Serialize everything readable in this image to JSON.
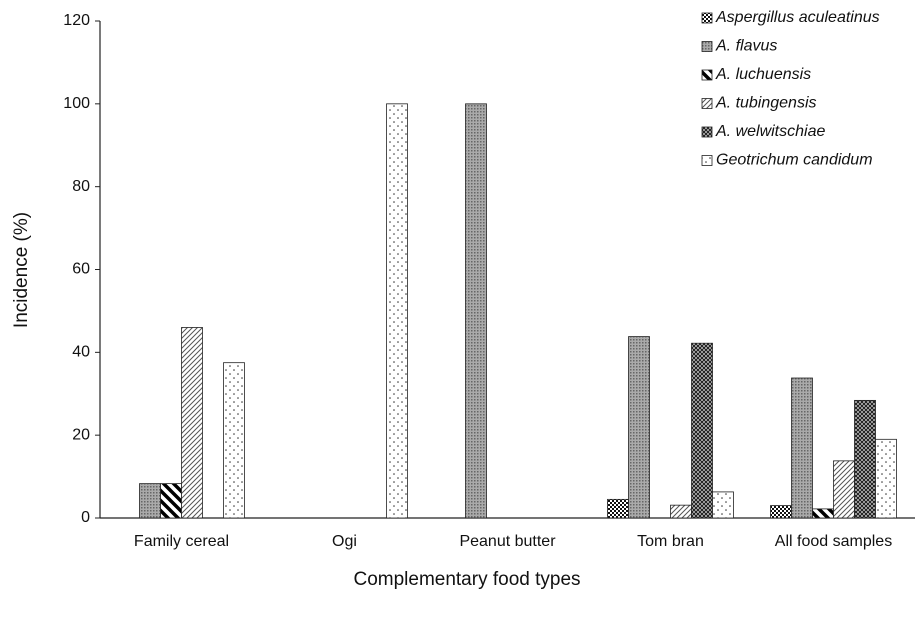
{
  "chart_data": {
    "type": "bar",
    "x_label": "Complementary food types",
    "y_label": "Incidence (%)",
    "categories": [
      "Family cereal",
      "Ogi",
      "Peanut butter",
      "Tom bran",
      "All food samples"
    ],
    "series": [
      {
        "name": "Aspergillus aculeatinus",
        "color": "#111111",
        "pattern": "checker",
        "values": [
          0,
          0,
          0,
          4.5,
          3
        ]
      },
      {
        "name": "A. flavus",
        "color": "#666666",
        "pattern": "dense-dots",
        "values": [
          8.3,
          0,
          100,
          43.8,
          33.8
        ]
      },
      {
        "name": "A. luchuensis",
        "color": "#000000",
        "pattern": "wide-stripes",
        "values": [
          8.3,
          0,
          0,
          0,
          2.2
        ]
      },
      {
        "name": "A. tubingensis",
        "color": "#555555",
        "pattern": "thin-stripes",
        "values": [
          46,
          0,
          0,
          3.1,
          13.8
        ]
      },
      {
        "name": "A. welwitschiae",
        "color": "#222222",
        "pattern": "crosshatch",
        "values": [
          0,
          0,
          0,
          42.2,
          28.4
        ]
      },
      {
        "name": "Geotrichum candidum",
        "color": "#333333",
        "pattern": "sparse-dots",
        "values": [
          37.5,
          100,
          0,
          6.3,
          19
        ]
      }
    ],
    "ylim": [
      0,
      120
    ],
    "yticks": [
      0,
      20,
      40,
      60,
      80,
      100,
      120
    ],
    "grid": false,
    "legend": "top-right"
  }
}
